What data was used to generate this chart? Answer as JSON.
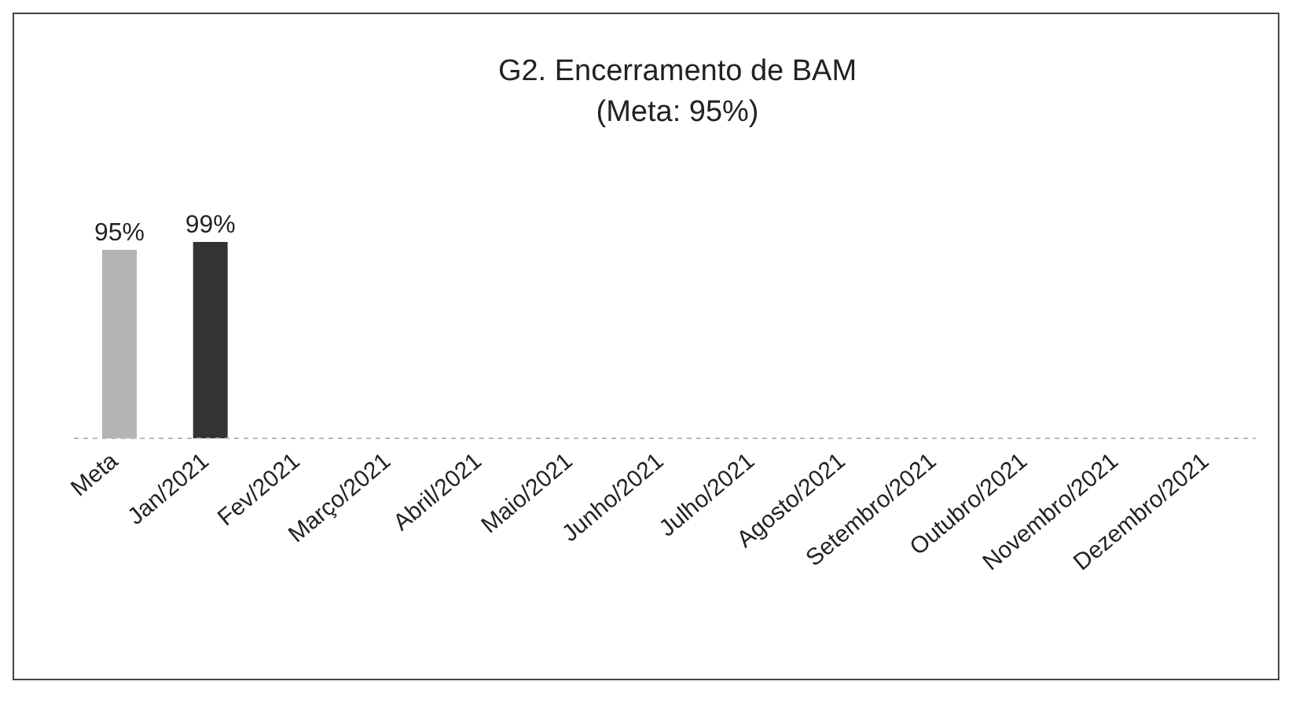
{
  "chart_data": {
    "type": "bar",
    "title": "G2. Encerramento de BAM",
    "subtitle": "(Meta: 95%)",
    "categories": [
      "Meta",
      "Jan/2021",
      "Fev/2021",
      "Março/2021",
      "Abril/2021",
      "Maio/2021",
      "Junho/2021",
      "Julho/2021",
      "Agosto/2021",
      "Setembro/2021",
      "Outubro/2021",
      "Novembro/2021",
      "Dezembro/2021"
    ],
    "values": [
      95,
      99,
      null,
      null,
      null,
      null,
      null,
      null,
      null,
      null,
      null,
      null,
      null
    ],
    "colors": [
      "#b4b4b4",
      "#333333",
      "#333333",
      "#333333",
      "#333333",
      "#333333",
      "#333333",
      "#333333",
      "#333333",
      "#333333",
      "#333333",
      "#333333",
      "#333333"
    ],
    "value_labels": [
      "95%",
      "99%",
      null,
      null,
      null,
      null,
      null,
      null,
      null,
      null,
      null,
      null,
      null
    ],
    "tick_labels": "x"
  }
}
